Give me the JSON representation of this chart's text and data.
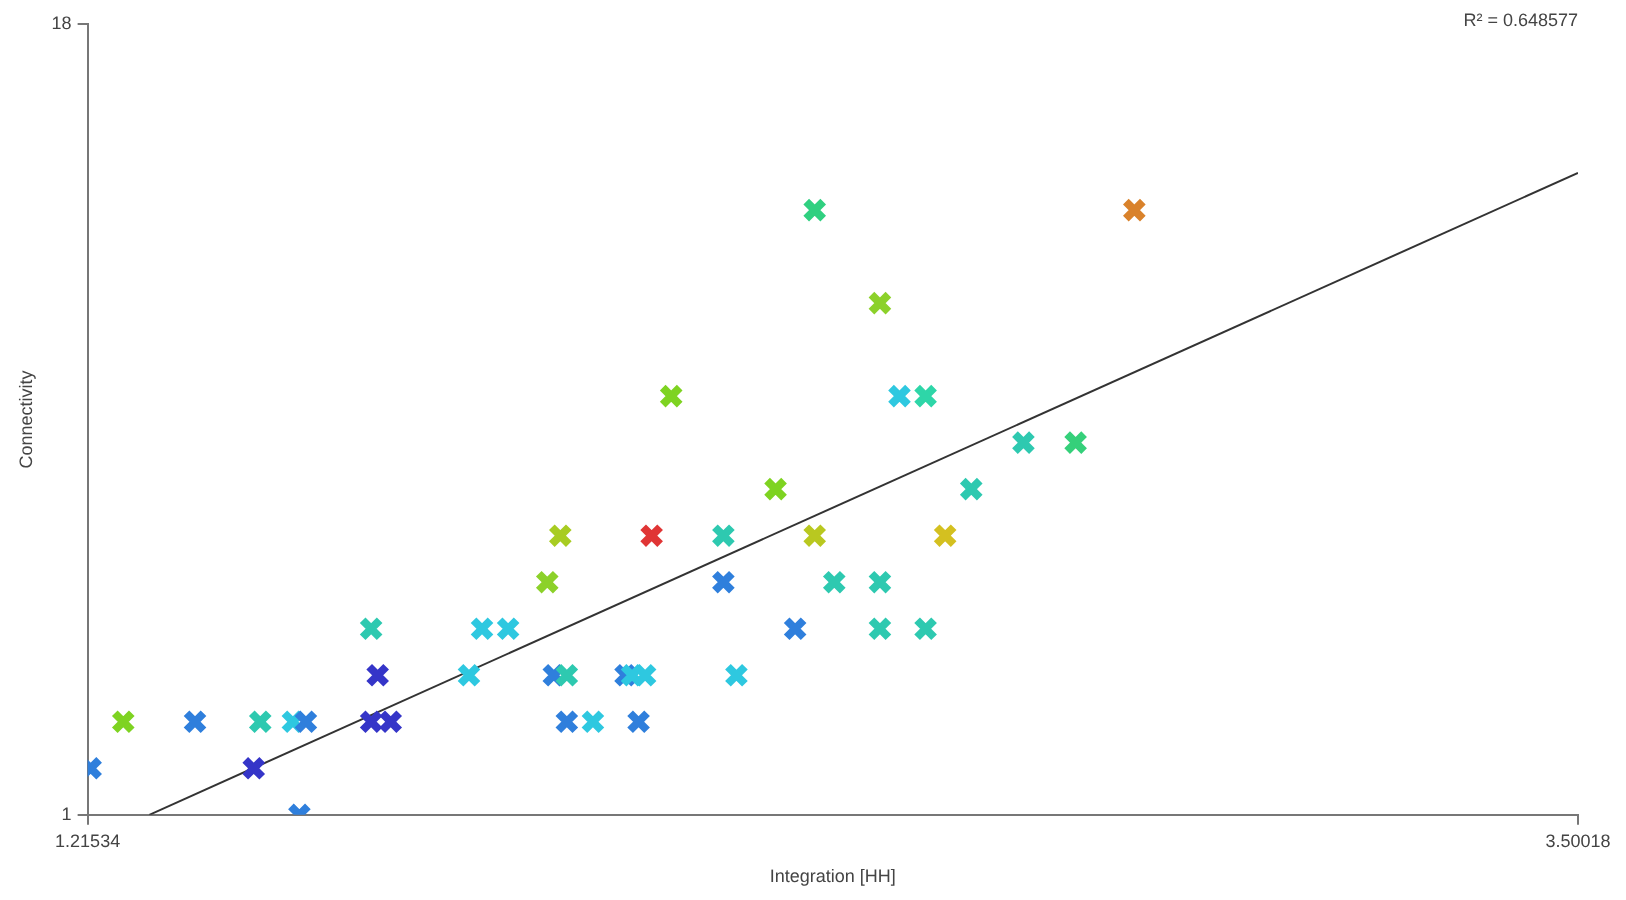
{
  "chart_data": {
    "type": "scatter",
    "xlabel": "Integration [HH]",
    "ylabel": "Connectivity",
    "annotations": [
      "R² = 0.648577"
    ],
    "xlim": [
      1.21534,
      3.50018
    ],
    "ylim": [
      1,
      18
    ],
    "xticks": [
      1.21534,
      3.50018
    ],
    "yticks": [
      1,
      18
    ],
    "grid": false,
    "legend": false,
    "marker": "cross",
    "series": [
      {
        "type": "scatter",
        "x": [
          1.22,
          1.27,
          1.38,
          1.47,
          1.48,
          1.53,
          1.54,
          1.55,
          1.65,
          1.65,
          1.66,
          1.68,
          1.8,
          1.82,
          1.86,
          1.92,
          1.93,
          1.94,
          1.95,
          1.95,
          1.99,
          2.04,
          2.05,
          2.06,
          2.07,
          2.08,
          2.11,
          2.19,
          2.19,
          2.21,
          2.27,
          2.3,
          2.33,
          2.33,
          2.36,
          2.43,
          2.43,
          2.43,
          2.46,
          2.5,
          2.5,
          2.53,
          2.57,
          2.65,
          2.73,
          2.82
        ],
        "values": [
          2,
          3,
          3,
          2,
          3,
          3,
          1,
          3,
          5,
          3,
          4,
          3,
          4,
          5,
          5,
          6,
          4,
          7,
          4,
          3,
          3,
          4,
          4,
          3,
          4,
          7,
          10,
          7,
          6,
          4,
          8,
          5,
          14,
          7,
          6,
          12,
          6,
          5,
          10,
          10,
          5,
          7,
          8,
          9,
          9,
          14
        ],
        "colors": [
          "#2f7fdc",
          "#7ed321",
          "#2f7fdc",
          "#3535c8",
          "#2ec9b0",
          "#2ec8e0",
          "#2f7fdc",
          "#2f7fdc",
          "#2ec9b0",
          "#3535c8",
          "#3535c8",
          "#3535c8",
          "#2ec8e0",
          "#2ec8e0",
          "#2ec8e0",
          "#8cd12a",
          "#2f7fdc",
          "#a8cc22",
          "#2ec9b0",
          "#2f7fdc",
          "#2ec8e0",
          "#2f7fdc",
          "#2ec8e0",
          "#2f7fdc",
          "#2ec8e0",
          "#e03535",
          "#7ed321",
          "#2ec9b0",
          "#2f7fdc",
          "#2ec8e0",
          "#7ed321",
          "#2f7fdc",
          "#30d080",
          "#b9c820",
          "#2ec9b0",
          "#8cd12a",
          "#2ec9b0",
          "#2ec9b0",
          "#2ec8e0",
          "#2ed6a8",
          "#2ec9b0",
          "#d4c020",
          "#2ec9b0",
          "#2ec9b0",
          "#35d07a",
          "#d9822b"
        ]
      },
      {
        "type": "line",
        "x": [
          1.31,
          3.50018
        ],
        "values": [
          1,
          14.8
        ],
        "color": "#333333",
        "marker": "none"
      }
    ]
  }
}
